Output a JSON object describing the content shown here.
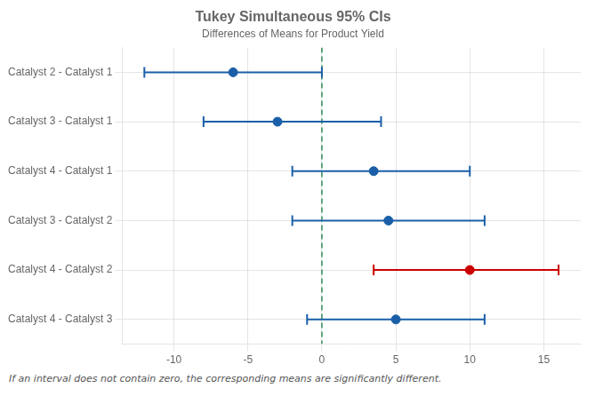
{
  "chart_data": {
    "type": "interval",
    "title": "Tukey Simultaneous 95% CIs",
    "subtitle": "Differences of Means for Product Yield",
    "footnote": "If an interval does not contain zero, the corresponding means are significantly different.",
    "orientation": "horizontal",
    "categories": [
      "Catalyst 2 - Catalyst 1",
      "Catalyst 3 - Catalyst 1",
      "Catalyst 4 - Catalyst 1",
      "Catalyst 3 - Catalyst 2",
      "Catalyst 4 - Catalyst 2",
      "Catalyst 4 - Catalyst 3"
    ],
    "values": [
      -6.0,
      -3.0,
      3.5,
      4.5,
      10.0,
      5.0
    ],
    "lo": [
      -12.0,
      -8.0,
      -2.0,
      -2.0,
      3.5,
      -1.0
    ],
    "hi": [
      0.0,
      4.0,
      10.0,
      11.0,
      16.0,
      11.0
    ],
    "colors": [
      "#1a5fa8",
      "#1a5fa8",
      "#1a5fa8",
      "#1a5fa8",
      "#cc0000",
      "#1a5fa8"
    ],
    "xlim": [
      -13.5,
      17.5
    ],
    "xticks": [
      -10,
      -5,
      0,
      5,
      10,
      15
    ],
    "reference_line": {
      "x": 0.0,
      "color": "#2e8b57",
      "line_style": "dashed"
    },
    "grid": true
  }
}
